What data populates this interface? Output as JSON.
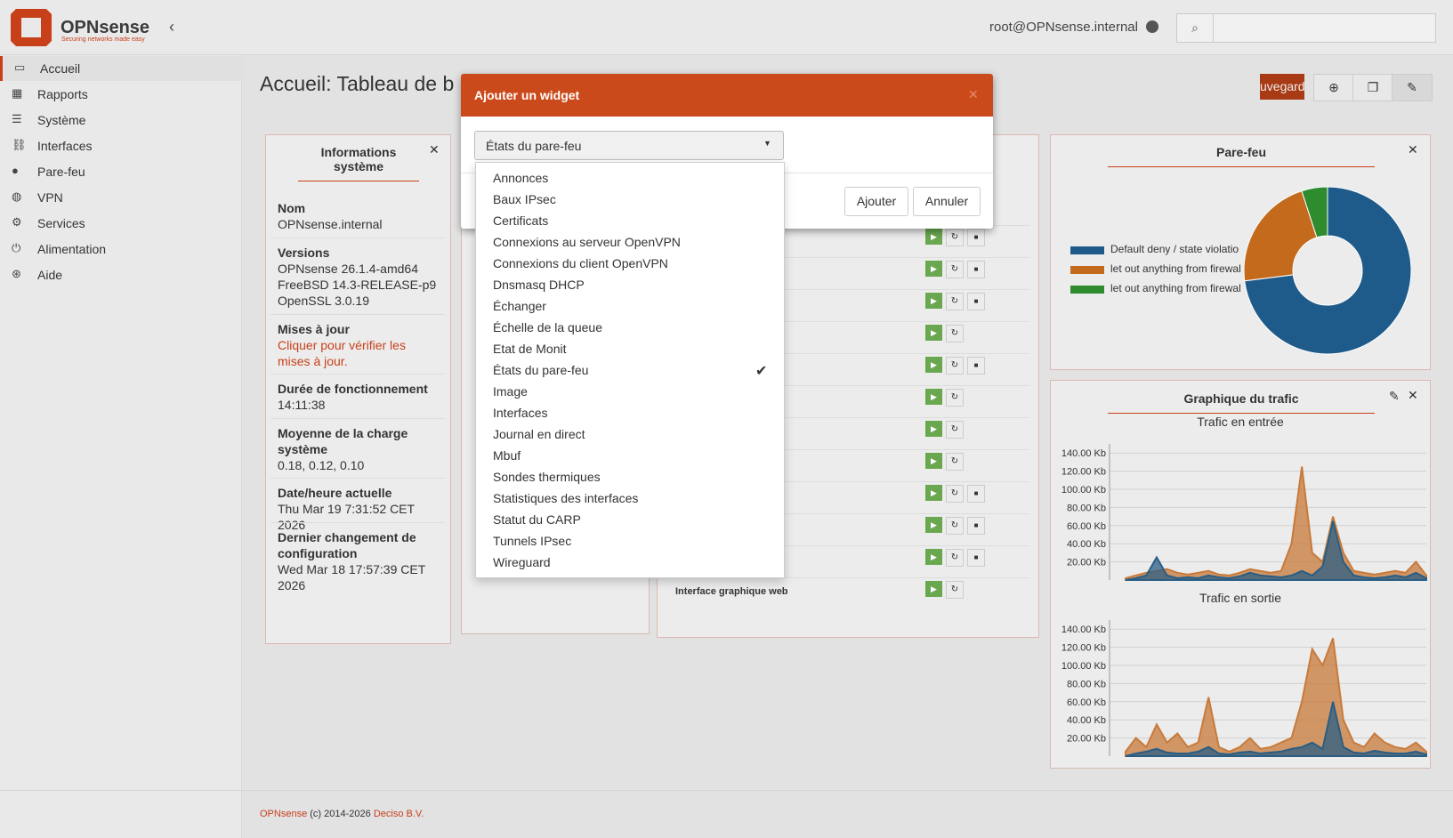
{
  "header": {
    "brand": "OPNsense",
    "tagline": "Securing networks made easy",
    "user": "root@OPNsense.internal"
  },
  "sidebar": {
    "items": [
      "Accueil",
      "Rapports",
      "Système",
      "Interfaces",
      "Pare-feu",
      "VPN",
      "Services",
      "Alimentation",
      "Aide"
    ]
  },
  "page": {
    "title": "Accueil: Tableau de b",
    "save": "uvegard"
  },
  "system_info": {
    "title": "Informations système",
    "rows": [
      {
        "label": "Nom",
        "value": [
          "OPNsense.internal"
        ]
      },
      {
        "label": "Versions",
        "value": [
          "OPNsense 26.1.4-amd64",
          "FreeBSD 14.3-RELEASE-p9",
          "OpenSSL 3.0.19"
        ]
      },
      {
        "label": "Mises à jour",
        "value": [
          "Cliquer pour vérifier les mises à jour."
        ]
      },
      {
        "label": "Durée de fonctionnement",
        "value": [
          "14:11:38"
        ]
      },
      {
        "label": "Moyenne de la charge système",
        "value": [
          "0.18, 0.12, 0.10"
        ]
      },
      {
        "label": "Date/heure actuelle",
        "value": [
          "Thu Mar 19 7:31:52 CET 2026"
        ]
      },
      {
        "label": "Dernier changement de configuration",
        "value": [
          "Wed Mar 18 17:57:39 CET 2026"
        ]
      }
    ]
  },
  "services": {
    "last_row": "Interface graphique web"
  },
  "firewall": {
    "title": "Pare-feu",
    "chart": {
      "type": "pie",
      "series": [
        {
          "name": "Default deny / state violatio",
          "color": "#1f5b8a",
          "value": 73
        },
        {
          "name": "let out anything from firewal",
          "color": "#c46a1c",
          "value": 22
        },
        {
          "name": "let out anything from firewal",
          "color": "#2e8b2e",
          "value": 5
        }
      ]
    }
  },
  "traffic": {
    "title": "Graphique du trafic",
    "charts": [
      {
        "type": "area",
        "title": "Trafic en entrée",
        "ylim": [
          0,
          150
        ],
        "yticks": [
          {
            "value": 20,
            "label": "20.00 Kb"
          },
          {
            "value": 40,
            "label": "40.00 Kb"
          },
          {
            "value": 60,
            "label": "60.00 Kb"
          },
          {
            "value": 80,
            "label": "80.00 Kb"
          },
          {
            "value": 100,
            "label": "100.00 Kb"
          },
          {
            "value": 120,
            "label": "120.00 Kb"
          },
          {
            "value": 140,
            "label": "140.00 Kb"
          }
        ],
        "series": [
          {
            "color": "#c87a3a",
            "values": [
              2,
              5,
              8,
              10,
              12,
              8,
              6,
              8,
              10,
              6,
              5,
              8,
              12,
              10,
              8,
              10,
              40,
              125,
              30,
              20,
              70,
              30,
              10,
              8,
              6,
              8,
              10,
              8,
              20,
              5
            ]
          },
          {
            "color": "#2a5d84",
            "values": [
              0,
              2,
              5,
              25,
              5,
              2,
              3,
              2,
              5,
              3,
              2,
              4,
              8,
              5,
              4,
              3,
              5,
              10,
              5,
              15,
              65,
              20,
              5,
              3,
              2,
              3,
              5,
              3,
              8,
              2
            ]
          }
        ]
      },
      {
        "type": "area",
        "title": "Trafic en sortie",
        "ylim": [
          0,
          150
        ],
        "yticks": [
          {
            "value": 20,
            "label": "20.00 Kb"
          },
          {
            "value": 40,
            "label": "40.00 Kb"
          },
          {
            "value": 60,
            "label": "60.00 Kb"
          },
          {
            "value": 80,
            "label": "80.00 Kb"
          },
          {
            "value": 100,
            "label": "100.00 Kb"
          },
          {
            "value": 120,
            "label": "120.00 Kb"
          },
          {
            "value": 140,
            "label": "140.00 Kb"
          }
        ],
        "series": [
          {
            "color": "#c87a3a",
            "values": [
              5,
              20,
              10,
              35,
              15,
              25,
              10,
              15,
              65,
              10,
              5,
              10,
              20,
              8,
              10,
              15,
              20,
              60,
              118,
              100,
              130,
              40,
              15,
              10,
              25,
              15,
              10,
              8,
              15,
              5
            ]
          },
          {
            "color": "#2a5d84",
            "values": [
              0,
              3,
              5,
              8,
              4,
              3,
              3,
              5,
              10,
              3,
              2,
              4,
              5,
              3,
              4,
              5,
              8,
              10,
              15,
              8,
              60,
              10,
              4,
              3,
              6,
              4,
              3,
              3,
              5,
              2
            ]
          }
        ]
      }
    ]
  },
  "modal": {
    "title": "Ajouter un widget",
    "selected": "États du pare-feu",
    "options": [
      "Annonces",
      "Baux IPsec",
      "Certificats",
      "Connexions au serveur OpenVPN",
      "Connexions du client OpenVPN",
      "Dnsmasq DHCP",
      "Échanger",
      "Échelle de la queue",
      "Etat de Monit",
      "États du pare-feu",
      "Image",
      "Interfaces",
      "Journal en direct",
      "Mbuf",
      "Sondes thermiques",
      "Statistiques des interfaces",
      "Statut du CARP",
      "Tunnels IPsec",
      "Wireguard"
    ],
    "add": "Ajouter",
    "cancel": "Annuler"
  },
  "footer": {
    "brand": "OPNsense",
    "copy": "(c) 2014-2026",
    "company": "Deciso B.V."
  }
}
